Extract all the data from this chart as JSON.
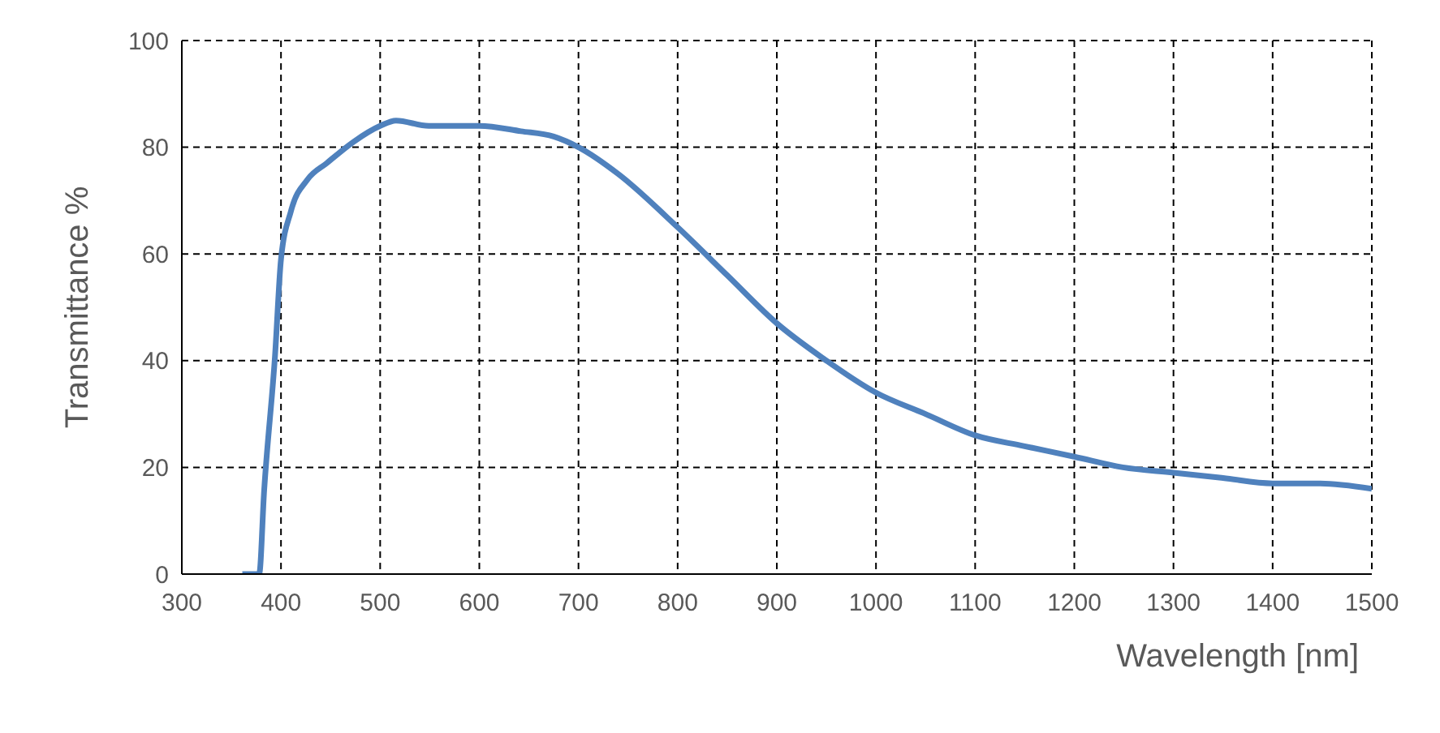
{
  "chart_data": {
    "type": "line",
    "xlabel": "Wavelength [nm]",
    "ylabel": "Transmittance %",
    "x": [
      361,
      378,
      383,
      394,
      400,
      410,
      427,
      446,
      473,
      500,
      516,
      549,
      600,
      642,
      675,
      700,
      740,
      800,
      850,
      900,
      947,
      1000,
      1050,
      1100,
      1149,
      1200,
      1249,
      1300,
      1350,
      1400,
      1448,
      1500
    ],
    "series": [
      {
        "color": "#4f81bd",
        "values": [
          0,
          0,
          15.6,
          41,
          59,
          68,
          74,
          77,
          81,
          84,
          85,
          84,
          84,
          83,
          82,
          80,
          75,
          65,
          56,
          47,
          40.4,
          34,
          30,
          26,
          24,
          22,
          20,
          19,
          18,
          17,
          17,
          16
        ]
      }
    ],
    "xlim": [
      300,
      1500
    ],
    "xticks": [
      300,
      400,
      500,
      600,
      700,
      800,
      900,
      1000,
      1100,
      1200,
      1300,
      1400,
      1500
    ],
    "ylim": [
      0,
      100
    ],
    "yticks": [
      0,
      20,
      40,
      60,
      80,
      100
    ],
    "grid": true,
    "line_style": "solid",
    "marker": "none"
  }
}
